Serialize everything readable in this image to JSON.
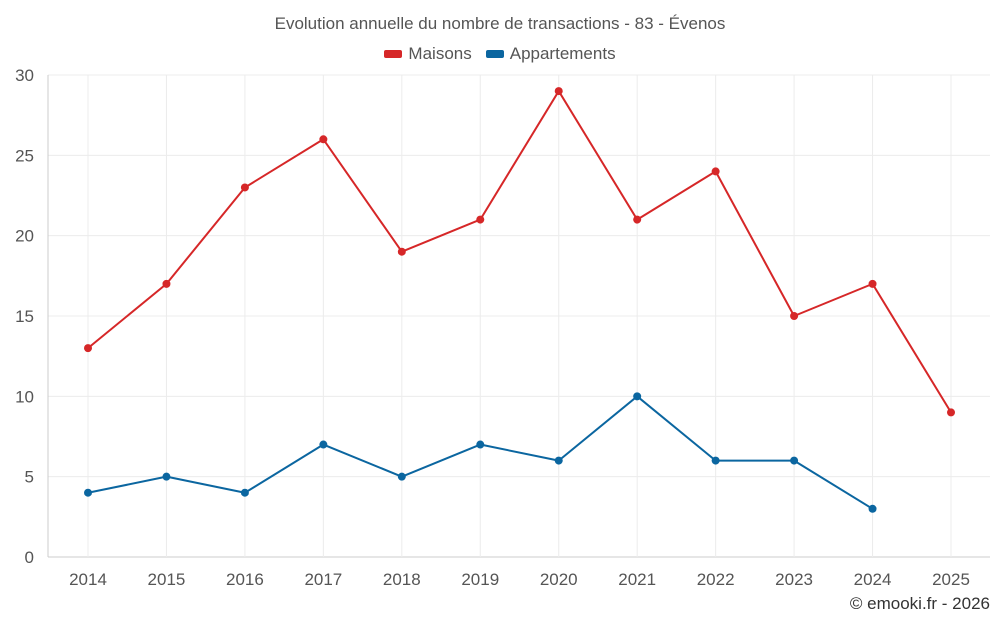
{
  "chart_data": {
    "type": "line",
    "title": "Evolution annuelle du nombre de transactions - 83 - Évenos",
    "categories": [
      "2014",
      "2015",
      "2016",
      "2017",
      "2018",
      "2019",
      "2020",
      "2021",
      "2022",
      "2023",
      "2024",
      "2025"
    ],
    "series": [
      {
        "name": "Maisons",
        "color": "#d62728",
        "values": [
          13,
          17,
          23,
          26,
          19,
          21,
          29,
          21,
          24,
          15,
          17,
          9
        ]
      },
      {
        "name": "Appartements",
        "color": "#0b66a0",
        "values": [
          4,
          5,
          4,
          7,
          5,
          7,
          6,
          10,
          6,
          6,
          3,
          null
        ]
      }
    ],
    "ylim": [
      0,
      30
    ],
    "yticks": [
      0,
      5,
      10,
      15,
      20,
      25,
      30
    ],
    "xlabel": "",
    "ylabel": "",
    "grid": true,
    "legend": "top-center"
  },
  "footer": {
    "credit": "© emooki.fr - 2026"
  }
}
